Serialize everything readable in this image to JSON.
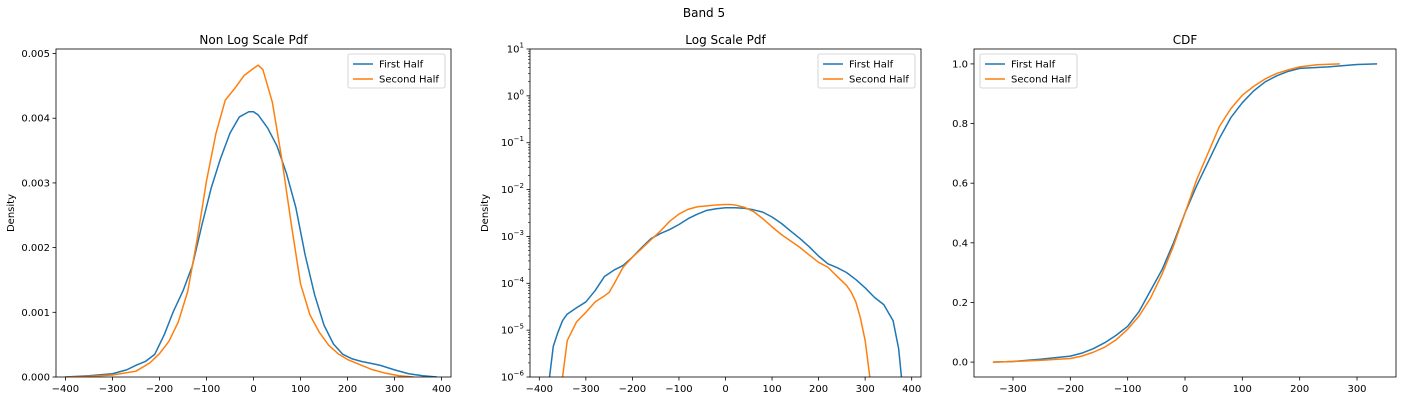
{
  "figure": {
    "suptitle": "Band 5"
  },
  "colors": {
    "first": "#1f77b4",
    "second": "#ff7f0e",
    "axis": "#000000"
  },
  "chart_data": [
    {
      "type": "line",
      "title": "Non Log Scale Pdf",
      "xlabel": "",
      "ylabel": "Density",
      "xlim": [
        -420,
        420
      ],
      "ylim": [
        0,
        0.00507
      ],
      "yscale": "linear",
      "xticks": [
        -400,
        -300,
        -200,
        -100,
        0,
        100,
        200,
        300,
        400
      ],
      "yticks": [
        0,
        0.001,
        0.002,
        0.003,
        0.004,
        0.005
      ],
      "ytick_labels": [
        "0.000",
        "0.001",
        "0.002",
        "0.003",
        "0.004",
        "0.005"
      ],
      "legend": {
        "position": "top-right"
      },
      "grid": false,
      "series": [
        {
          "name": "First Half",
          "color": "#1f77b4",
          "x": [
            -400,
            -350,
            -300,
            -270,
            -250,
            -230,
            -210,
            -190,
            -170,
            -150,
            -130,
            -110,
            -90,
            -70,
            -50,
            -30,
            -10,
            0,
            10,
            30,
            50,
            70,
            90,
            110,
            130,
            150,
            170,
            190,
            210,
            230,
            250,
            270,
            300,
            330,
            360,
            390
          ],
          "y": [
            0.0,
            2e-05,
            5e-05,
            0.00011,
            0.00018,
            0.00024,
            0.00035,
            0.00065,
            0.00102,
            0.00133,
            0.00172,
            0.00234,
            0.00292,
            0.00338,
            0.00377,
            0.00402,
            0.0041,
            0.0041,
            0.00405,
            0.00385,
            0.00357,
            0.00315,
            0.00262,
            0.00188,
            0.00127,
            0.0008,
            0.00051,
            0.00035,
            0.00028,
            0.00024,
            0.00021,
            0.00018,
            0.00011,
            5e-05,
            2e-05,
            0.0
          ]
        },
        {
          "name": "Second Half",
          "color": "#ff7f0e",
          "x": [
            -400,
            -350,
            -300,
            -250,
            -220,
            -200,
            -180,
            -160,
            -140,
            -120,
            -100,
            -80,
            -60,
            -40,
            -20,
            0,
            10,
            20,
            40,
            60,
            80,
            100,
            120,
            140,
            160,
            180,
            200,
            220,
            250,
            280,
            310,
            340
          ],
          "y": [
            0.0,
            1e-05,
            3e-05,
            9e-05,
            0.00022,
            0.00036,
            0.00055,
            0.00085,
            0.00132,
            0.00212,
            0.00303,
            0.00376,
            0.00428,
            0.00446,
            0.00466,
            0.00477,
            0.00482,
            0.00475,
            0.00425,
            0.00338,
            0.00238,
            0.00144,
            0.00096,
            0.00069,
            0.00049,
            0.00036,
            0.00027,
            0.00021,
            0.00012,
            6e-05,
            2e-05,
            0.0
          ]
        }
      ]
    },
    {
      "type": "line",
      "title": "Log Scale Pdf",
      "xlabel": "",
      "ylabel": "Density",
      "xlim": [
        -420,
        420
      ],
      "ylim": [
        1e-06,
        10
      ],
      "yscale": "log",
      "xticks": [
        -400,
        -300,
        -200,
        -100,
        0,
        100,
        200,
        300,
        400
      ],
      "yticks": [
        1e-06,
        1e-05,
        0.0001,
        0.001,
        0.01,
        0.1,
        1,
        10
      ],
      "ytick_labels": [
        {
          "base": "10",
          "exp": "−6"
        },
        {
          "base": "10",
          "exp": "−5"
        },
        {
          "base": "10",
          "exp": "−4"
        },
        {
          "base": "10",
          "exp": "−3"
        },
        {
          "base": "10",
          "exp": "−2"
        },
        {
          "base": "10",
          "exp": "−1"
        },
        {
          "base": "10",
          "exp": "0"
        },
        {
          "base": "10",
          "exp": "1"
        }
      ],
      "legend": {
        "position": "top-right"
      },
      "grid": false,
      "series": [
        {
          "name": "First Half",
          "color": "#1f77b4",
          "x": [
            -378,
            -370,
            -360,
            -350,
            -340,
            -320,
            -300,
            -280,
            -260,
            -240,
            -220,
            -200,
            -180,
            -160,
            -140,
            -120,
            -100,
            -80,
            -60,
            -40,
            -20,
            0,
            20,
            40,
            60,
            80,
            100,
            120,
            140,
            160,
            180,
            200,
            220,
            240,
            260,
            280,
            300,
            320,
            340,
            360,
            372,
            378
          ],
          "y": [
            1e-06,
            4.5e-06,
            9e-06,
            1.6e-05,
            2.2e-05,
            3e-05,
            4e-05,
            7e-05,
            0.00014,
            0.00019,
            0.00024,
            0.00036,
            0.00058,
            0.0009,
            0.00115,
            0.0014,
            0.0018,
            0.0024,
            0.003,
            0.0036,
            0.0039,
            0.0041,
            0.0041,
            0.004,
            0.0037,
            0.0033,
            0.0026,
            0.0019,
            0.0013,
            0.0009,
            0.0006,
            0.00038,
            0.00026,
            0.000215,
            0.00017,
            0.00012,
            8e-05,
            5e-05,
            3.5e-05,
            1.6e-05,
            4e-06,
            1e-06
          ]
        },
        {
          "name": "Second Half",
          "color": "#ff7f0e",
          "x": [
            -350,
            -340,
            -320,
            -300,
            -280,
            -260,
            -250,
            -240,
            -220,
            -200,
            -180,
            -160,
            -140,
            -120,
            -100,
            -80,
            -60,
            -40,
            -20,
            0,
            10,
            20,
            40,
            60,
            80,
            100,
            120,
            140,
            160,
            180,
            200,
            220,
            240,
            260,
            270,
            280,
            290,
            300,
            305,
            310
          ],
          "y": [
            1e-06,
            6e-06,
            1.5e-05,
            2.4e-05,
            4e-05,
            5.4e-05,
            6.4e-05,
            9.5e-05,
            0.00022,
            0.00036,
            0.00055,
            0.00085,
            0.0013,
            0.0021,
            0.003,
            0.0038,
            0.0043,
            0.0045,
            0.0047,
            0.0048,
            0.0048,
            0.0047,
            0.0042,
            0.0034,
            0.0024,
            0.0016,
            0.0011,
            0.0008,
            0.00058,
            0.0004,
            0.00028,
            0.00022,
            0.00014,
            9e-05,
            6.5e-05,
            4e-05,
            1.8e-05,
            6e-06,
            2.5e-06,
            1e-06
          ]
        }
      ]
    },
    {
      "type": "line",
      "title": "CDF",
      "xlabel": "",
      "ylabel": "",
      "xlim": [
        -368,
        368
      ],
      "ylim": [
        -0.05,
        1.05
      ],
      "yscale": "linear",
      "xticks": [
        -300,
        -200,
        -100,
        0,
        100,
        200,
        300
      ],
      "yticks": [
        0,
        0.2,
        0.4,
        0.6,
        0.8,
        1.0
      ],
      "ytick_labels": [
        "0.0",
        "0.2",
        "0.4",
        "0.6",
        "0.8",
        "1.0"
      ],
      "legend": {
        "position": "top-left"
      },
      "grid": false,
      "series": [
        {
          "name": "First Half",
          "color": "#1f77b4",
          "x": [
            -335,
            -300,
            -250,
            -200,
            -180,
            -160,
            -140,
            -120,
            -100,
            -80,
            -60,
            -40,
            -20,
            0,
            20,
            40,
            60,
            80,
            100,
            120,
            140,
            160,
            180,
            200,
            250,
            300,
            335
          ],
          "y": [
            0.0,
            0.002,
            0.01,
            0.02,
            0.03,
            0.045,
            0.065,
            0.09,
            0.12,
            0.17,
            0.24,
            0.31,
            0.4,
            0.5,
            0.59,
            0.67,
            0.75,
            0.82,
            0.87,
            0.91,
            0.94,
            0.96,
            0.975,
            0.985,
            0.99,
            0.998,
            1.0
          ]
        },
        {
          "name": "Second Half",
          "color": "#ff7f0e",
          "x": [
            -335,
            -300,
            -250,
            -200,
            -180,
            -160,
            -140,
            -120,
            -100,
            -80,
            -60,
            -40,
            -20,
            0,
            20,
            40,
            60,
            80,
            100,
            120,
            140,
            160,
            180,
            200,
            230,
            270
          ],
          "y": [
            0.0,
            0.002,
            0.006,
            0.012,
            0.02,
            0.033,
            0.05,
            0.075,
            0.11,
            0.155,
            0.215,
            0.295,
            0.39,
            0.5,
            0.61,
            0.7,
            0.79,
            0.85,
            0.895,
            0.925,
            0.95,
            0.968,
            0.98,
            0.99,
            0.997,
            1.0
          ]
        }
      ]
    }
  ]
}
